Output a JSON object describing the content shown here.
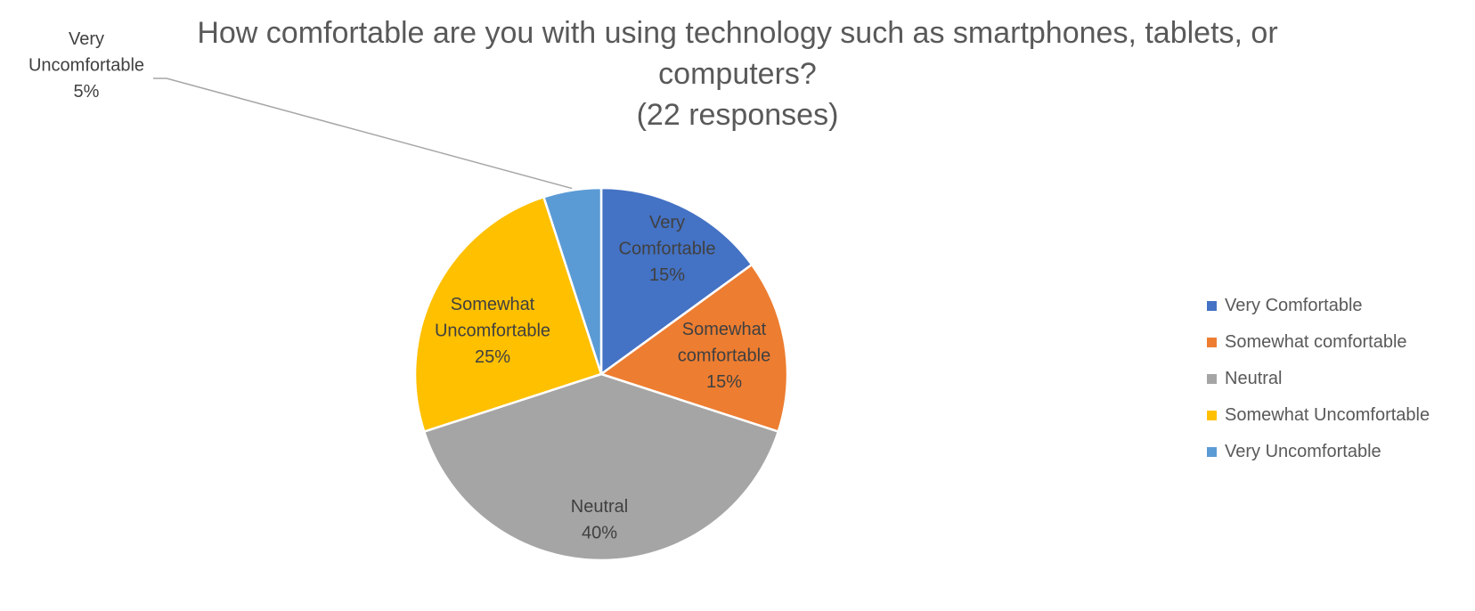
{
  "chart_data": {
    "type": "pie",
    "title": "How comfortable are you with using technology such as smartphones, tablets, or computers?",
    "subtitle": "(22 responses)",
    "slices": [
      {
        "label": "Very Comfortable",
        "value": 15,
        "display": "15%",
        "color": "#4472C4",
        "label_lines": [
          "Very",
          "Comfortable",
          "15%"
        ]
      },
      {
        "label": "Somewhat comfortable",
        "value": 15,
        "display": "15%",
        "color": "#ED7D31",
        "label_lines": [
          "Somewhat",
          "comfortable",
          "15%"
        ]
      },
      {
        "label": "Neutral",
        "value": 40,
        "display": "40%",
        "color": "#A5A5A5",
        "label_lines": [
          "Neutral",
          "40%"
        ]
      },
      {
        "label": "Somewhat Uncomfortable",
        "value": 25,
        "display": "25%",
        "color": "#FFC000",
        "label_lines": [
          "Somewhat",
          "Uncomfortable",
          "25%"
        ]
      },
      {
        "label": "Very Uncomfortable",
        "value": 5,
        "display": "5%",
        "color": "#5B9BD5",
        "label_lines": [
          "Very",
          "Uncomfortable",
          "5%"
        ]
      }
    ],
    "legend_position": "right",
    "start_angle": "12 o'clock",
    "direction": "clockwise"
  }
}
